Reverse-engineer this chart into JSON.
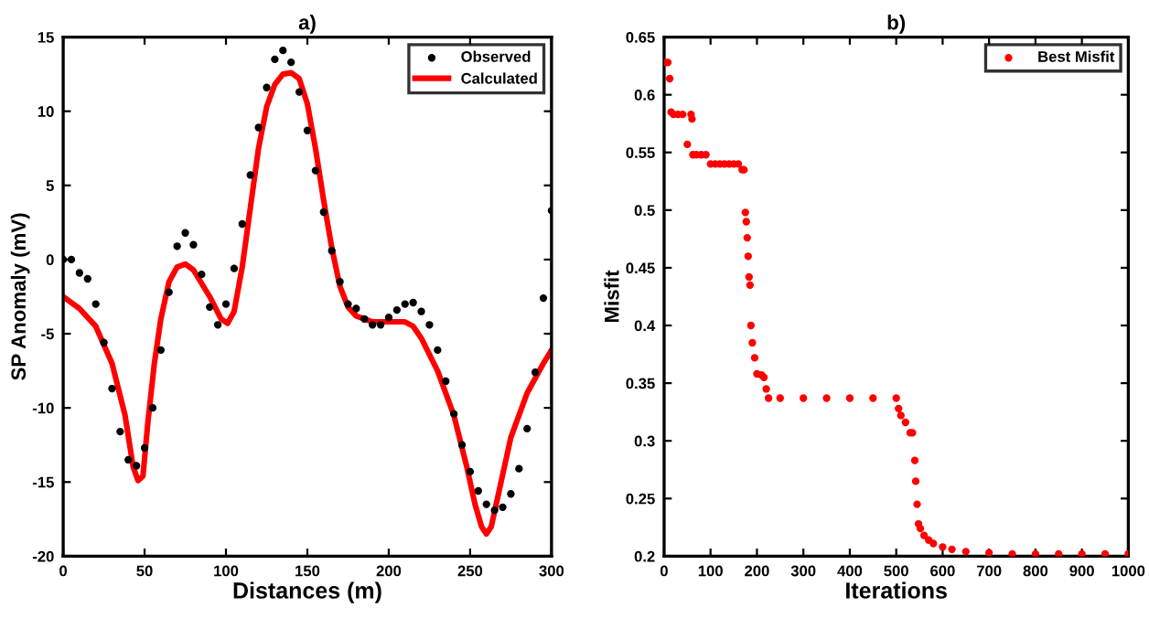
{
  "chart_data": [
    {
      "type": "scatter",
      "title": "a)",
      "xlabel": "Distances (m)",
      "ylabel": "SP Anomaly (mV)",
      "xlim": [
        0,
        300
      ],
      "ylim": [
        -20,
        15
      ],
      "xticks": [
        0,
        50,
        100,
        150,
        200,
        250,
        300
      ],
      "yticks": [
        -20,
        -15,
        -10,
        -5,
        0,
        5,
        10,
        15
      ],
      "legend": "top right",
      "grid": false,
      "series": [
        {
          "name": "Observed",
          "color": "#000000",
          "marker": "circle",
          "x": [
            0,
            5,
            10,
            15,
            20,
            25,
            30,
            35,
            40,
            45,
            50,
            55,
            60,
            65,
            70,
            75,
            80,
            85,
            90,
            95,
            100,
            105,
            110,
            115,
            120,
            125,
            130,
            135,
            140,
            145,
            150,
            155,
            160,
            165,
            170,
            175,
            180,
            185,
            190,
            195,
            200,
            205,
            210,
            215,
            220,
            225,
            230,
            235,
            240,
            245,
            250,
            255,
            260,
            265,
            270,
            275,
            280,
            285,
            290,
            295,
            300
          ],
          "values": [
            0,
            0,
            -0.9,
            -1.3,
            -3,
            -5.6,
            -8.7,
            -11.6,
            -13.5,
            -13.9,
            -12.7,
            -10,
            -6.1,
            -2.2,
            0.9,
            1.8,
            1,
            -1,
            -3.2,
            -4.4,
            -3,
            -0.6,
            2.4,
            5.7,
            8.9,
            11.6,
            13.5,
            14.1,
            13.3,
            11.3,
            8.7,
            6,
            3.2,
            0.6,
            -1.5,
            -3,
            -3.3,
            -4,
            -4.4,
            -4.4,
            -3.9,
            -3.4,
            -3,
            -2.9,
            -3.5,
            -4.4,
            -6.1,
            -8.2,
            -10.4,
            -12.5,
            -14.3,
            -15.6,
            -16.5,
            -16.9,
            -16.7,
            -15.8,
            -14.1,
            -11.4,
            -7.6,
            -2.6,
            3.3
          ]
        },
        {
          "name": "Calculated",
          "type": "line",
          "color": "#ff0000",
          "line_style": "solid",
          "x": [
            0,
            10,
            20,
            30,
            38,
            43,
            46,
            49,
            52,
            56,
            60,
            65,
            70,
            75,
            80,
            90,
            97,
            101,
            105,
            110,
            115,
            120,
            125,
            130,
            135,
            140,
            145,
            150,
            155,
            160,
            165,
            170,
            175,
            180,
            190,
            200,
            210,
            215,
            220,
            230,
            240,
            248,
            253,
            257,
            260,
            263,
            268,
            275,
            285,
            295,
            300
          ],
          "values": [
            -2.5,
            -3.3,
            -4.5,
            -7,
            -10.5,
            -14,
            -14.9,
            -14.6,
            -11,
            -7,
            -4,
            -1.5,
            -0.5,
            -0.3,
            -0.7,
            -2.5,
            -4,
            -4.3,
            -3.5,
            -0.5,
            3.5,
            7.5,
            10.3,
            11.8,
            12.5,
            12.6,
            12.2,
            10.5,
            7.5,
            4,
            0.8,
            -1.8,
            -3.2,
            -3.8,
            -4.2,
            -4.2,
            -4.2,
            -4.5,
            -5.3,
            -7.5,
            -10.5,
            -14,
            -16.5,
            -18,
            -18.5,
            -18,
            -15.5,
            -12,
            -9,
            -7,
            -6.1
          ]
        }
      ]
    },
    {
      "type": "scatter",
      "title": "b)",
      "xlabel": "Iterations",
      "ylabel": "Misfit",
      "xlim": [
        0,
        1000
      ],
      "ylim": [
        0.2,
        0.65
      ],
      "xticks": [
        0,
        100,
        200,
        300,
        400,
        500,
        600,
        700,
        800,
        900,
        1000
      ],
      "yticks": [
        0.2,
        0.25,
        0.3,
        0.35,
        0.4,
        0.45,
        0.5,
        0.55,
        0.6,
        0.65
      ],
      "legend": "top right",
      "grid": false,
      "series": [
        {
          "name": "Best Misfit",
          "color": "#ff0000",
          "marker": "circle",
          "x": [
            3,
            8,
            12,
            15,
            20,
            30,
            40,
            50,
            58,
            60,
            62,
            70,
            80,
            90,
            100,
            110,
            120,
            130,
            140,
            150,
            160,
            168,
            172,
            175,
            177,
            179,
            181,
            183,
            185,
            187,
            190,
            195,
            200,
            210,
            215,
            220,
            225,
            250,
            300,
            350,
            400,
            450,
            500,
            505,
            510,
            520,
            530,
            535,
            540,
            542,
            545,
            548,
            552,
            560,
            570,
            580,
            600,
            620,
            650,
            700,
            750,
            800,
            850,
            900,
            950,
            1000
          ],
          "values": [
            0.628,
            0.628,
            0.614,
            0.585,
            0.583,
            0.583,
            0.583,
            0.557,
            0.583,
            0.579,
            0.548,
            0.548,
            0.548,
            0.548,
            0.54,
            0.54,
            0.54,
            0.54,
            0.54,
            0.54,
            0.54,
            0.535,
            0.535,
            0.498,
            0.49,
            0.476,
            0.46,
            0.442,
            0.435,
            0.4,
            0.385,
            0.372,
            0.358,
            0.357,
            0.355,
            0.345,
            0.337,
            0.337,
            0.337,
            0.337,
            0.337,
            0.337,
            0.337,
            0.328,
            0.322,
            0.316,
            0.307,
            0.307,
            0.283,
            0.265,
            0.245,
            0.228,
            0.224,
            0.218,
            0.214,
            0.211,
            0.208,
            0.206,
            0.204,
            0.203,
            0.202,
            0.202,
            0.202,
            0.202,
            0.202,
            0.202
          ]
        }
      ]
    }
  ]
}
